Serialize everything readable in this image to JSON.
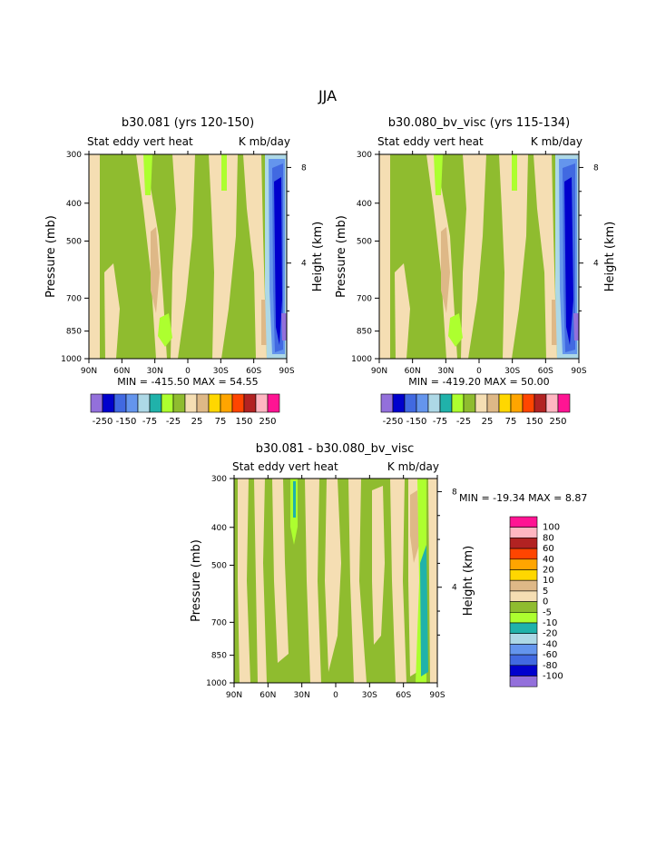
{
  "page": {
    "title": "JJA"
  },
  "colors": {
    "panel_palette": [
      "#9370db",
      "#0000cd",
      "#4169e1",
      "#6495ed",
      "#add8e6",
      "#20b2aa",
      "#adff2f",
      "#8fbc2f",
      "#f5deb3",
      "#deb887",
      "#ffd700",
      "#ffa500",
      "#ff4500",
      "#b22222",
      "#ffb6c1",
      "#ff1493"
    ],
    "diff_palette": [
      "#9370db",
      "#0000cd",
      "#4169e1",
      "#6495ed",
      "#add8e6",
      "#20b2aa",
      "#adff2f",
      "#8fbc2f",
      "#f5deb3",
      "#deb887",
      "#ffd700",
      "#ffa500",
      "#ff4500",
      "#b22222",
      "#ffb6c1",
      "#ff1493"
    ]
  },
  "panel_colorbar_labels": [
    "-250",
    "-150",
    "-75",
    "-25",
    "25",
    "75",
    "150",
    "250"
  ],
  "diff_colorbar_labels": [
    "100",
    "80",
    "60",
    "40",
    "20",
    "10",
    "5",
    "0",
    "-5",
    "-10",
    "-20",
    "-40",
    "-60",
    "-80",
    "-100"
  ],
  "chart_data": [
    {
      "type": "heatmap",
      "title": "b30.081 (yrs 120-150)",
      "subtitle_left": "Stat eddy vert heat",
      "subtitle_right": "K mb/day",
      "xlabel": "",
      "ylabel": "Pressure (mb)",
      "ylabel_right": "Height (km)",
      "x_ticks": [
        "90N",
        "60N",
        "30N",
        "0",
        "30S",
        "60S",
        "90S"
      ],
      "y_ticks": [
        "300",
        "400",
        "500",
        "700",
        "850",
        "1000"
      ],
      "y_right_ticks": [
        "8",
        "4"
      ],
      "min_max_text": "MIN = -415.50   MAX =  54.55",
      "min": -415.5,
      "max": 54.55,
      "levels": [
        -250,
        -150,
        -75,
        -25,
        25,
        75,
        150,
        250
      ]
    },
    {
      "type": "heatmap",
      "title": "b30.080_bv_visc (yrs 115-134)",
      "subtitle_left": "Stat eddy vert heat",
      "subtitle_right": "K mb/day",
      "xlabel": "",
      "ylabel": "Pressure (mb)",
      "ylabel_right": "Height (km)",
      "x_ticks": [
        "90N",
        "60N",
        "30N",
        "0",
        "30S",
        "60S",
        "90S"
      ],
      "y_ticks": [
        "300",
        "400",
        "500",
        "700",
        "850",
        "1000"
      ],
      "y_right_ticks": [
        "8",
        "4"
      ],
      "min_max_text": "MIN = -419.20   MAX =  50.00",
      "min": -419.2,
      "max": 50.0,
      "levels": [
        -250,
        -150,
        -75,
        -25,
        25,
        75,
        150,
        250
      ]
    },
    {
      "type": "heatmap",
      "title": "b30.081 - b30.080_bv_visc",
      "subtitle_left": "Stat eddy vert heat",
      "subtitle_right": "K mb/day",
      "xlabel": "",
      "ylabel": "Pressure (mb)",
      "ylabel_right": "Height (km)",
      "x_ticks": [
        "90N",
        "60N",
        "30N",
        "0",
        "30S",
        "60S",
        "90S"
      ],
      "y_ticks": [
        "300",
        "400",
        "500",
        "700",
        "850",
        "1000"
      ],
      "y_right_ticks": [
        "8",
        "4"
      ],
      "min_max_text": "MIN = -19.34   MAX =   8.87",
      "min": -19.34,
      "max": 8.87,
      "levels": [
        -100,
        -80,
        -60,
        -40,
        -20,
        -10,
        -5,
        0,
        5,
        10,
        20,
        40,
        60,
        80,
        100
      ]
    }
  ]
}
